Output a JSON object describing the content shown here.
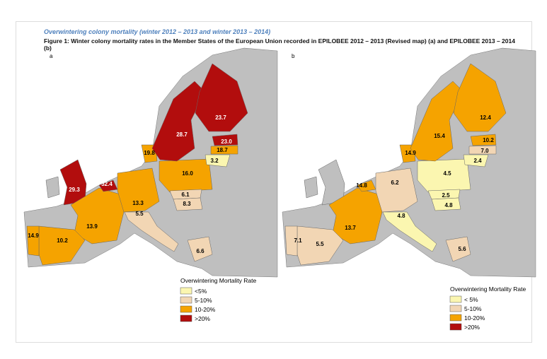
{
  "header": {
    "title": "Overwintering colony mortality (winter 2012 – 2013 and winter 2013 – 2014)",
    "caption": "Figure 1: Winter colony mortality rates in the Member States of the European Union recorded in EPILOBEE 2012 – 2013 (Revised map) (a) and EPILOBEE 2013 – 2014 (b)"
  },
  "maps": [
    {
      "label": "a",
      "labels": [
        "29.3",
        "32.4",
        "13.9",
        "10.2",
        "14.9",
        "13.3",
        "16.0",
        "28.7",
        "23.7",
        "23.0",
        "18.7",
        "3.2",
        "19.8",
        "6.1",
        "8.3",
        "5.5",
        "6.6"
      ],
      "legend": {
        "title": "Overwintering Mortality Rate",
        "items": [
          "<5%",
          "5-10%",
          "10-20%",
          ">20%"
        ]
      }
    },
    {
      "label": "b",
      "labels": [
        "14.8",
        "13.7",
        "5.5",
        "7.1",
        "6.2",
        "4.5",
        "15.4",
        "12.4",
        "10.2",
        "7.0",
        "2.4",
        "14.9",
        "2.5",
        "4.8",
        "4.8",
        "5.6"
      ],
      "legend": {
        "title": "Overwintering Mortality Rate",
        "items": [
          "< 5%",
          "5-10%",
          "10-20%",
          ">20%"
        ]
      }
    }
  ]
}
